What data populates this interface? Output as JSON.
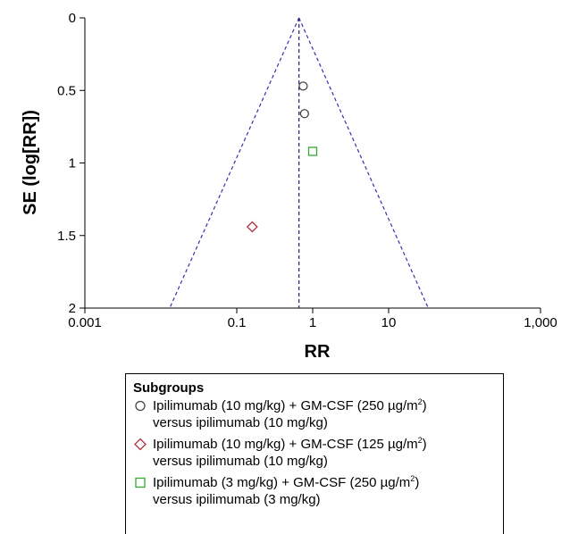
{
  "chart_data": {
    "type": "scatter",
    "title": "",
    "xlabel": "RR",
    "ylabel": "SE (log[RR])",
    "x_scale": "log",
    "xlim": [
      0.001,
      1000
    ],
    "ylim": [
      0,
      2
    ],
    "y_inverted": true,
    "x_tick_labels": [
      {
        "value": 0.001,
        "label": "0.001"
      },
      {
        "value": 0.1,
        "label": "0.1"
      },
      {
        "value": 1,
        "label": "1"
      },
      {
        "value": 10,
        "label": "10"
      },
      {
        "value": 1000,
        "label": "1,000"
      }
    ],
    "y_tick_labels": [
      {
        "value": 0,
        "label": "0"
      },
      {
        "value": 0.5,
        "label": "0.5"
      },
      {
        "value": 1,
        "label": "1"
      },
      {
        "value": 1.5,
        "label": "1.5"
      },
      {
        "value": 2,
        "label": "2"
      }
    ],
    "pooled_estimate": 0.66,
    "funnel_line_color": "#3333aa",
    "series": [
      {
        "name": "Ipilimumab (10 mg/kg) + GM-CSF (250 µg/m2) versus ipilimumab (10 mg/kg)",
        "marker": "circle",
        "color": "#444444",
        "points": [
          {
            "x": 0.75,
            "y": 0.47
          },
          {
            "x": 0.78,
            "y": 0.66
          }
        ]
      },
      {
        "name": "Ipilimumab (10 mg/kg) + GM-CSF (125 µg/m2) versus ipilimumab (10 mg/kg)",
        "marker": "diamond",
        "color": "#b03040",
        "points": [
          {
            "x": 0.16,
            "y": 1.44
          }
        ]
      },
      {
        "name": "Ipilimumab (3 mg/kg) + GM-CSF (250 µg/m2) versus ipilimumab (3 mg/kg)",
        "marker": "square",
        "color": "#33aa33",
        "points": [
          {
            "x": 1.0,
            "y": 0.92
          }
        ]
      }
    ],
    "grid": false,
    "legend_position": "bottom"
  },
  "legend": {
    "title": "Subgroups",
    "items": [
      {
        "line1_pre": "Ipilimumab (10 mg/kg) + GM-CSF (250 µg/m",
        "sup": "2",
        "line1_post": ")",
        "line2": "versus ipilimumab (10 mg/kg)"
      },
      {
        "line1_pre": "Ipilimumab (10 mg/kg) + GM-CSF (125 µg/m",
        "sup": "2",
        "line1_post": ")",
        "line2": "versus ipilimumab (10 mg/kg)"
      },
      {
        "line1_pre": "Ipilimumab (3 mg/kg) + GM-CSF (250 µg/m",
        "sup": "2",
        "line1_post": ")",
        "line2": "versus ipilimumab (3 mg/kg)"
      }
    ]
  }
}
